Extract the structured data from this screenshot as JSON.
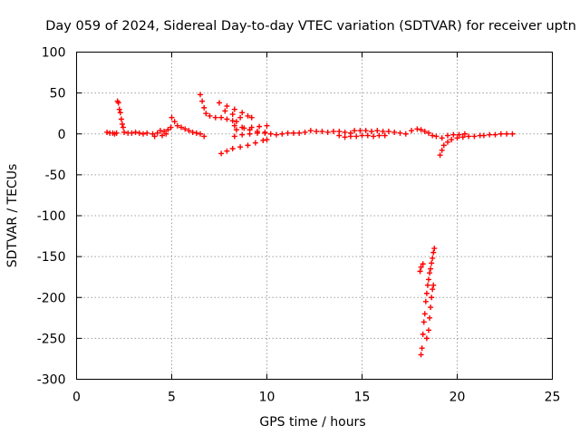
{
  "chart_data": {
    "type": "scatter",
    "title": "Day 059 of 2024, Sidereal Day-to-day VTEC variation (SDTVAR) for receiver uptn",
    "xlabel": "GPS time / hours",
    "ylabel": "SDTVAR / TECUs",
    "xlim": [
      0,
      25
    ],
    "ylim": [
      -300,
      100
    ],
    "xticks": [
      "0",
      "5",
      "10",
      "15",
      "20",
      "25"
    ],
    "yticks": [
      "100",
      "50",
      "0",
      "-50",
      "-100",
      "-150",
      "-200",
      "-250",
      "-300"
    ],
    "grid": true,
    "marker": "plus",
    "color": "#ff0000",
    "series": [
      {
        "name": "",
        "points": [
          [
            1.6,
            2
          ],
          [
            1.75,
            1
          ],
          [
            1.9,
            1
          ],
          [
            2.0,
            0
          ],
          [
            2.1,
            1
          ],
          [
            2.15,
            40
          ],
          [
            2.2,
            38
          ],
          [
            2.25,
            30
          ],
          [
            2.3,
            26
          ],
          [
            2.35,
            18
          ],
          [
            2.4,
            12
          ],
          [
            2.45,
            8
          ],
          [
            2.5,
            2
          ],
          [
            2.7,
            1
          ],
          [
            2.9,
            1
          ],
          [
            3.1,
            2
          ],
          [
            3.3,
            1
          ],
          [
            3.5,
            0
          ],
          [
            3.7,
            1
          ],
          [
            4.0,
            0
          ],
          [
            4.1,
            -3
          ],
          [
            4.25,
            1
          ],
          [
            4.4,
            4
          ],
          [
            4.5,
            -2
          ],
          [
            4.6,
            3
          ],
          [
            4.7,
            0
          ],
          [
            4.8,
            5
          ],
          [
            4.95,
            8
          ],
          [
            5.0,
            20
          ],
          [
            5.15,
            15
          ],
          [
            5.3,
            10
          ],
          [
            5.5,
            8
          ],
          [
            5.7,
            6
          ],
          [
            5.9,
            4
          ],
          [
            6.1,
            2
          ],
          [
            6.3,
            1
          ],
          [
            6.5,
            0
          ],
          [
            6.7,
            -3
          ],
          [
            6.5,
            48
          ],
          [
            6.6,
            40
          ],
          [
            6.7,
            32
          ],
          [
            6.8,
            25
          ],
          [
            7.0,
            22
          ],
          [
            7.3,
            20
          ],
          [
            7.6,
            20
          ],
          [
            7.9,
            18
          ],
          [
            8.2,
            16
          ],
          [
            8.4,
            15
          ],
          [
            7.5,
            38
          ],
          [
            7.9,
            34
          ],
          [
            8.3,
            30
          ],
          [
            8.7,
            26
          ],
          [
            9.0,
            22
          ],
          [
            9.2,
            20
          ],
          [
            7.8,
            28
          ],
          [
            8.2,
            24
          ],
          [
            8.6,
            20
          ],
          [
            7.6,
            -24
          ],
          [
            7.9,
            -21
          ],
          [
            8.2,
            -18
          ],
          [
            8.6,
            -16
          ],
          [
            9.0,
            -14
          ],
          [
            9.4,
            -11
          ],
          [
            9.8,
            -8
          ],
          [
            10.0,
            -7
          ],
          [
            8.3,
            -3
          ],
          [
            8.7,
            -1
          ],
          [
            9.1,
            0
          ],
          [
            9.5,
            1
          ],
          [
            9.9,
            2
          ],
          [
            8.4,
            5
          ],
          [
            8.8,
            7
          ],
          [
            9.2,
            8
          ],
          [
            9.6,
            9
          ],
          [
            10.0,
            10
          ],
          [
            8.3,
            10
          ],
          [
            8.7,
            8
          ],
          [
            9.1,
            5
          ],
          [
            9.5,
            3
          ],
          [
            9.9,
            1
          ],
          [
            10.2,
            0
          ],
          [
            10.5,
            -1
          ],
          [
            10.8,
            0
          ],
          [
            11.1,
            1
          ],
          [
            11.4,
            1
          ],
          [
            11.7,
            1
          ],
          [
            12.0,
            2
          ],
          [
            12.3,
            4
          ],
          [
            12.6,
            3
          ],
          [
            12.9,
            3
          ],
          [
            13.2,
            2
          ],
          [
            13.5,
            3
          ],
          [
            13.8,
            3
          ],
          [
            14.1,
            2
          ],
          [
            14.4,
            1
          ],
          [
            13.8,
            -2
          ],
          [
            14.1,
            -4
          ],
          [
            14.4,
            -3
          ],
          [
            14.7,
            -3
          ],
          [
            15.0,
            -2
          ],
          [
            15.3,
            -2
          ],
          [
            15.6,
            -3
          ],
          [
            15.9,
            -2
          ],
          [
            16.2,
            -2
          ],
          [
            14.6,
            4
          ],
          [
            14.9,
            4
          ],
          [
            15.2,
            4
          ],
          [
            15.5,
            3
          ],
          [
            15.8,
            4
          ],
          [
            16.1,
            3
          ],
          [
            16.4,
            3
          ],
          [
            16.7,
            2
          ],
          [
            17.0,
            1
          ],
          [
            17.3,
            0
          ],
          [
            17.6,
            4
          ],
          [
            17.9,
            6
          ],
          [
            18.1,
            5
          ],
          [
            18.3,
            3
          ],
          [
            18.5,
            1
          ],
          [
            18.7,
            -2
          ],
          [
            18.9,
            -3
          ],
          [
            18.1,
            -270
          ],
          [
            18.15,
            -262
          ],
          [
            18.2,
            -245
          ],
          [
            18.25,
            -230
          ],
          [
            18.3,
            -220
          ],
          [
            18.35,
            -205
          ],
          [
            18.4,
            -195
          ],
          [
            18.45,
            -185
          ],
          [
            18.5,
            -178
          ],
          [
            18.55,
            -170
          ],
          [
            18.6,
            -165
          ],
          [
            18.65,
            -158
          ],
          [
            18.7,
            -152
          ],
          [
            18.75,
            -145
          ],
          [
            18.8,
            -140
          ],
          [
            18.05,
            -168
          ],
          [
            18.1,
            -163
          ],
          [
            18.2,
            -159
          ],
          [
            18.4,
            -250
          ],
          [
            18.5,
            -240
          ],
          [
            18.55,
            -225
          ],
          [
            18.6,
            -212
          ],
          [
            18.65,
            -200
          ],
          [
            18.7,
            -190
          ],
          [
            18.75,
            -185
          ],
          [
            19.1,
            -26
          ],
          [
            19.2,
            -20
          ],
          [
            19.3,
            -14
          ],
          [
            19.5,
            -10
          ],
          [
            19.7,
            -7
          ],
          [
            20.0,
            -5
          ],
          [
            20.3,
            -4
          ],
          [
            20.6,
            -3
          ],
          [
            20.9,
            -3
          ],
          [
            21.2,
            -2
          ],
          [
            19.2,
            -5
          ],
          [
            19.5,
            -2
          ],
          [
            19.8,
            -1
          ],
          [
            20.1,
            -1
          ],
          [
            20.4,
            0
          ],
          [
            21.4,
            -2
          ],
          [
            21.7,
            -1
          ],
          [
            22.0,
            -1
          ],
          [
            22.3,
            0
          ],
          [
            22.6,
            0
          ],
          [
            22.9,
            0
          ]
        ]
      }
    ]
  }
}
